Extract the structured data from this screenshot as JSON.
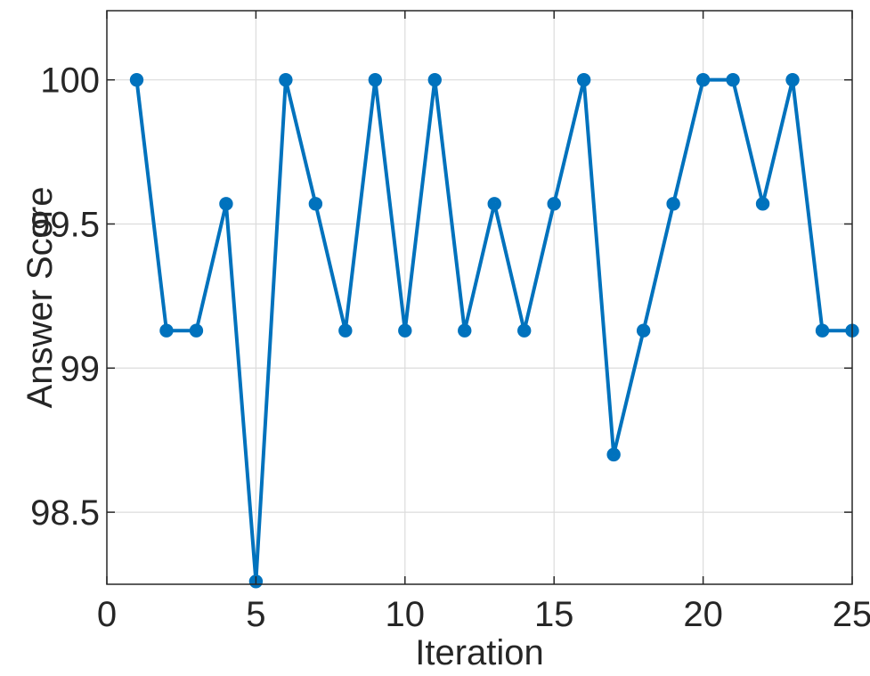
{
  "chart_data": {
    "type": "line",
    "title": "",
    "xlabel": "Iteration",
    "ylabel": "Answer Score",
    "x": [
      1,
      2,
      3,
      4,
      5,
      6,
      7,
      8,
      9,
      10,
      11,
      12,
      13,
      14,
      15,
      16,
      17,
      18,
      19,
      20,
      21,
      22,
      23,
      24,
      25
    ],
    "y": [
      100,
      99.13,
      99.13,
      99.57,
      98.26,
      100,
      99.57,
      99.13,
      100,
      99.13,
      100,
      99.13,
      99.57,
      99.13,
      99.57,
      100,
      98.7,
      99.13,
      99.57,
      100,
      100,
      99.57,
      100,
      99.13,
      99.13
    ],
    "xlim": [
      0,
      25
    ],
    "ylim": [
      98.25,
      100.24
    ],
    "xticks": [
      0,
      5,
      10,
      15,
      20,
      25
    ],
    "xtick_labels": [
      "0",
      "5",
      "10",
      "15",
      "20",
      "25"
    ],
    "yticks": [
      98.5,
      99,
      99.5,
      100
    ],
    "ytick_labels": [
      "98.5",
      "99",
      "99.5",
      "100"
    ],
    "grid": true,
    "legend": null,
    "marker": "circle",
    "line_color": "#0072BD",
    "axis_color": "#262626",
    "grid_color": "#dcdcdc",
    "background": "#ffffff"
  }
}
